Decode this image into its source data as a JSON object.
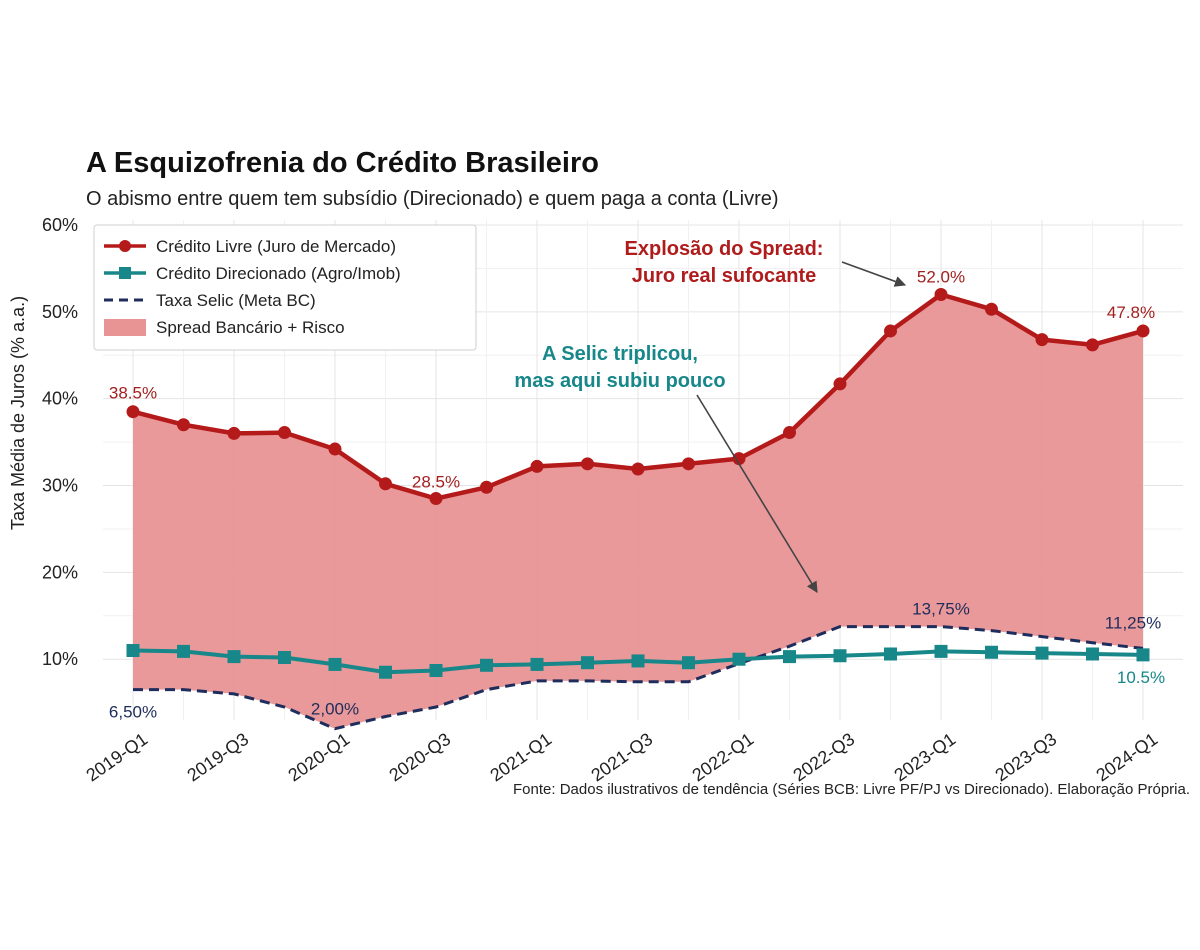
{
  "chart_data": {
    "type": "line",
    "title": "A Esquizofrenia do Crédito Brasileiro",
    "subtitle": "O abismo entre quem tem subsídio (Direcionado) e quem paga a conta (Livre)",
    "ylabel": "Taxa Média de Juros (% a.a.)",
    "xlabel": "",
    "ylim": [
      3,
      60
    ],
    "yticks": [
      10,
      20,
      30,
      40,
      50,
      60
    ],
    "ytick_labels": [
      "10%",
      "20%",
      "30%",
      "40%",
      "50%",
      "60%"
    ],
    "x": [
      "2019-Q1",
      "2019-Q2",
      "2019-Q3",
      "2019-Q4",
      "2020-Q1",
      "2020-Q2",
      "2020-Q3",
      "2020-Q4",
      "2021-Q1",
      "2021-Q2",
      "2021-Q3",
      "2021-Q4",
      "2022-Q1",
      "2022-Q2",
      "2022-Q3",
      "2022-Q4",
      "2023-Q1",
      "2023-Q2",
      "2023-Q3",
      "2023-Q4",
      "2024-Q1"
    ],
    "xtick_labels": [
      "2019-Q1",
      "2019-Q3",
      "2020-Q1",
      "2020-Q3",
      "2021-Q1",
      "2021-Q3",
      "2022-Q1",
      "2022-Q3",
      "2023-Q1",
      "2023-Q3",
      "2024-Q1"
    ],
    "series": [
      {
        "name": "Crédito Livre (Juro de Mercado)",
        "color": "#b51a1a",
        "marker": "circle",
        "values": [
          38.5,
          37.0,
          36.0,
          36.1,
          34.2,
          30.2,
          28.5,
          29.8,
          32.2,
          32.5,
          31.9,
          32.5,
          33.1,
          36.1,
          41.7,
          47.8,
          52.0,
          50.3,
          46.8,
          46.2,
          47.8
        ]
      },
      {
        "name": "Crédito Direcionado (Agro/Imob)",
        "color": "#17878a",
        "marker": "square",
        "values": [
          11.0,
          10.9,
          10.3,
          10.2,
          9.4,
          8.5,
          8.7,
          9.3,
          9.4,
          9.6,
          9.8,
          9.6,
          10.0,
          10.3,
          10.4,
          10.6,
          10.9,
          10.8,
          10.7,
          10.6,
          10.5
        ]
      },
      {
        "name": "Taxa Selic (Meta BC)",
        "color": "#1f2d5c",
        "style": "dashed",
        "values": [
          6.5,
          6.5,
          6.0,
          4.5,
          2.0,
          3.4,
          4.5,
          6.5,
          7.5,
          7.5,
          7.4,
          7.4,
          9.5,
          11.5,
          13.75,
          13.75,
          13.75,
          13.3,
          12.6,
          11.9,
          11.25
        ]
      }
    ],
    "fill": {
      "name": "Spread Bancário + Risco",
      "color": "#e89494",
      "between": [
        "Crédito Livre (Juro de Mercado)",
        "Taxa Selic (Meta BC)"
      ]
    },
    "data_labels": [
      {
        "series": 0,
        "index": 0,
        "text": "38.5%"
      },
      {
        "series": 0,
        "index": 6,
        "text": "28.5%"
      },
      {
        "series": 0,
        "index": 16,
        "text": "52.0%"
      },
      {
        "series": 0,
        "index": 20,
        "text": "47.8%"
      },
      {
        "series": 2,
        "index": 0,
        "text": "6,50%"
      },
      {
        "series": 2,
        "index": 4,
        "text": "2,00%"
      },
      {
        "series": 2,
        "index": 16,
        "text": "13,75%"
      },
      {
        "series": 2,
        "index": 20,
        "text": "11,25%"
      },
      {
        "series": 1,
        "index": 20,
        "text": "10.5%"
      }
    ],
    "annotations": [
      {
        "lines": [
          "Explosão do Spread:",
          "Juro real sufocante"
        ],
        "color": "#b01c1c",
        "points_to": {
          "series": 0,
          "index": 15
        }
      },
      {
        "lines": [
          "A Selic triplicou,",
          "mas aqui subiu pouco"
        ],
        "color": "#17878a",
        "points_to": {
          "series": 1,
          "index": 14
        }
      }
    ],
    "legend": {
      "position": "top-left"
    },
    "grid": true,
    "source": "Fonte: Dados ilustrativos de tendência (Séries BCB: Livre PF/PJ vs Direcionado). Elaboração Própria."
  }
}
